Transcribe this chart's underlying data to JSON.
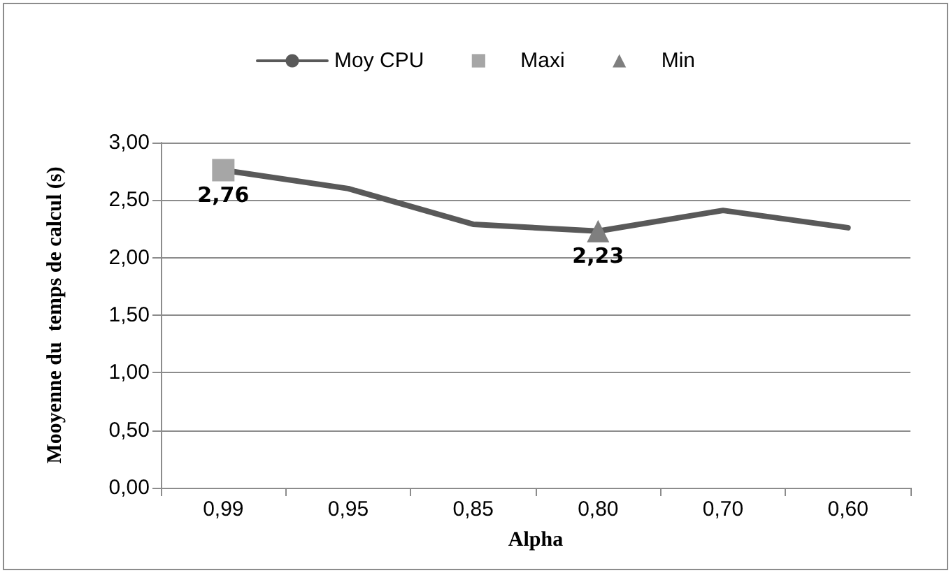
{
  "chart_data": {
    "type": "line",
    "xlabel": "Alpha",
    "ylabel": "Mooyenne du  temps de calcul (s)",
    "categories": [
      "0,99",
      "0,95",
      "0,85",
      "0,80",
      "0,70",
      "0,60"
    ],
    "series": [
      {
        "name": "Moy CPU",
        "color": "#595959",
        "marker": "none",
        "values": [
          2.76,
          2.6,
          2.29,
          2.23,
          2.41,
          2.26
        ]
      },
      {
        "name": "Maxi",
        "color": "#a6a6a6",
        "marker": "square",
        "values": [
          2.76,
          null,
          null,
          null,
          null,
          null
        ],
        "value_labels": [
          "2,76",
          null,
          null,
          null,
          null,
          null
        ]
      },
      {
        "name": "Min",
        "color": "#7f7f7f",
        "marker": "triangle",
        "values": [
          null,
          null,
          null,
          2.23,
          null,
          null
        ],
        "value_labels": [
          null,
          null,
          null,
          "2,23",
          null,
          null
        ]
      }
    ],
    "ylim": [
      0,
      3
    ],
    "yticks": [
      {
        "value": 0,
        "label": "0,00"
      },
      {
        "value": 0.5,
        "label": "0,50"
      },
      {
        "value": 1,
        "label": "1,00"
      },
      {
        "value": 1.5,
        "label": "1,50"
      },
      {
        "value": 2,
        "label": "2,00"
      },
      {
        "value": 2.5,
        "label": "2,50"
      },
      {
        "value": 3,
        "label": "3,00"
      }
    ],
    "grid": "y",
    "legend": "top"
  }
}
